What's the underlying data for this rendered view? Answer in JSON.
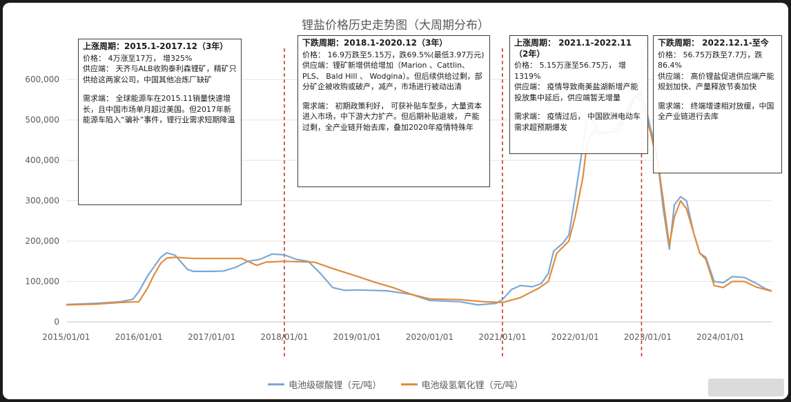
{
  "chart_data": {
    "type": "line",
    "title": "锂盐价格历史走势图（大周期分布）",
    "xlabel": "",
    "ylabel": "",
    "ylim": [
      0,
      650000
    ],
    "xlim": [
      "2015/01/01",
      "2024/09/15"
    ],
    "yticks": [
      0,
      100000,
      200000,
      300000,
      400000,
      500000,
      600000
    ],
    "ytick_labels": [
      "0",
      "100,000",
      "200,000",
      "300,000",
      "400,000",
      "500,000",
      "600,000"
    ],
    "xticks": [
      "2015/01/01",
      "2016/01/01",
      "2017/01/01",
      "2018/01/01",
      "2019/01/01",
      "2020/01/01",
      "2021/01/01",
      "2022/01/01",
      "2023/01/01",
      "2024/01/01"
    ],
    "grid": true,
    "legend_position": "bottom",
    "cycle_dividers": [
      "2018/01/01",
      "2021/01/01",
      "2022/12/01"
    ],
    "series": [
      {
        "name": "电池级碳酸锂（元/吨）",
        "color": "#7ba7d4",
        "points": [
          [
            "2015/01/01",
            43000
          ],
          [
            "2015/06/01",
            46000
          ],
          [
            "2015/10/01",
            50000
          ],
          [
            "2015/12/01",
            56000
          ],
          [
            "2016/01/01",
            75000
          ],
          [
            "2016/02/15",
            115000
          ],
          [
            "2016/03/15",
            135000
          ],
          [
            "2016/04/20",
            160000
          ],
          [
            "2016/05/20",
            171000
          ],
          [
            "2016/07/01",
            165000
          ],
          [
            "2016/09/01",
            130000
          ],
          [
            "2016/10/01",
            125000
          ],
          [
            "2017/01/01",
            125000
          ],
          [
            "2017/03/01",
            126000
          ],
          [
            "2017/05/01",
            135000
          ],
          [
            "2017/07/01",
            150000
          ],
          [
            "2017/09/01",
            155000
          ],
          [
            "2017/11/01",
            168000
          ],
          [
            "2018/01/01",
            166000
          ],
          [
            "2018/03/01",
            155000
          ],
          [
            "2018/05/01",
            150000
          ],
          [
            "2018/07/01",
            120000
          ],
          [
            "2018/09/01",
            85000
          ],
          [
            "2018/11/01",
            78000
          ],
          [
            "2019/01/01",
            79000
          ],
          [
            "2019/06/01",
            77000
          ],
          [
            "2019/10/01",
            68000
          ],
          [
            "2020/01/01",
            53000
          ],
          [
            "2020/06/01",
            50000
          ],
          [
            "2020/09/01",
            42000
          ],
          [
            "2020/12/01",
            46000
          ],
          [
            "2021/01/01",
            55000
          ],
          [
            "2021/02/15",
            80000
          ],
          [
            "2021/04/01",
            90000
          ],
          [
            "2021/06/01",
            87000
          ],
          [
            "2021/07/15",
            95000
          ],
          [
            "2021/08/20",
            120000
          ],
          [
            "2021/09/15",
            175000
          ],
          [
            "2021/11/01",
            195000
          ],
          [
            "2021/12/01",
            215000
          ],
          [
            "2022/01/01",
            310000
          ],
          [
            "2022/02/10",
            440000
          ],
          [
            "2022/03/01",
            500000
          ],
          [
            "2022/04/01",
            500000
          ],
          [
            "2022/05/01",
            465000
          ],
          [
            "2022/07/01",
            470000
          ],
          [
            "2022/09/01",
            500000
          ],
          [
            "2022/10/15",
            550000
          ],
          [
            "2022/11/20",
            567500
          ],
          [
            "2022/12/15",
            545000
          ],
          [
            "2023/01/15",
            480000
          ],
          [
            "2023/02/15",
            420000
          ],
          [
            "2023/03/20",
            280000
          ],
          [
            "2023/04/20",
            180000
          ],
          [
            "2023/05/15",
            290000
          ],
          [
            "2023/06/15",
            310000
          ],
          [
            "2023/07/15",
            300000
          ],
          [
            "2023/08/20",
            220000
          ],
          [
            "2023/09/20",
            170000
          ],
          [
            "2023/10/20",
            160000
          ],
          [
            "2023/12/01",
            100000
          ],
          [
            "2024/01/15",
            97000
          ],
          [
            "2024/03/01",
            112000
          ],
          [
            "2024/05/01",
            110000
          ],
          [
            "2024/07/01",
            95000
          ],
          [
            "2024/08/15",
            82000
          ],
          [
            "2024/09/15",
            77000
          ]
        ]
      },
      {
        "name": "电池级氢氧化锂（元/吨）",
        "color": "#e28b39",
        "points": [
          [
            "2015/01/01",
            42000
          ],
          [
            "2015/06/01",
            44000
          ],
          [
            "2015/10/01",
            48000
          ],
          [
            "2016/01/01",
            50000
          ],
          [
            "2016/02/15",
            85000
          ],
          [
            "2016/03/15",
            115000
          ],
          [
            "2016/04/20",
            145000
          ],
          [
            "2016/05/20",
            158000
          ],
          [
            "2016/07/01",
            160000
          ],
          [
            "2016/10/01",
            157000
          ],
          [
            "2017/01/01",
            157000
          ],
          [
            "2017/06/01",
            157000
          ],
          [
            "2017/08/15",
            140000
          ],
          [
            "2017/10/01",
            148000
          ],
          [
            "2018/01/01",
            150000
          ],
          [
            "2018/06/01",
            148000
          ],
          [
            "2018/09/01",
            132000
          ],
          [
            "2019/01/01",
            113000
          ],
          [
            "2019/04/01",
            98000
          ],
          [
            "2019/07/01",
            85000
          ],
          [
            "2019/10/01",
            68000
          ],
          [
            "2020/01/01",
            57000
          ],
          [
            "2020/06/01",
            55000
          ],
          [
            "2020/10/01",
            50000
          ],
          [
            "2021/01/01",
            48000
          ],
          [
            "2021/04/01",
            60000
          ],
          [
            "2021/07/01",
            83000
          ],
          [
            "2021/08/20",
            100000
          ],
          [
            "2021/10/01",
            170000
          ],
          [
            "2021/12/01",
            200000
          ],
          [
            "2022/01/01",
            260000
          ],
          [
            "2022/02/10",
            360000
          ],
          [
            "2022/03/01",
            440000
          ],
          [
            "2022/04/01",
            470000
          ],
          [
            "2022/05/01",
            470000
          ],
          [
            "2022/08/01",
            470000
          ],
          [
            "2022/10/01",
            520000
          ],
          [
            "2022/11/01",
            560000
          ],
          [
            "2022/12/01",
            545000
          ],
          [
            "2023/01/15",
            470000
          ],
          [
            "2023/03/01",
            370000
          ],
          [
            "2023/04/20",
            190000
          ],
          [
            "2023/05/15",
            260000
          ],
          [
            "2023/06/15",
            300000
          ],
          [
            "2023/07/15",
            280000
          ],
          [
            "2023/08/20",
            220000
          ],
          [
            "2023/09/20",
            170000
          ],
          [
            "2023/10/20",
            155000
          ],
          [
            "2023/12/01",
            90000
          ],
          [
            "2024/01/15",
            85000
          ],
          [
            "2024/03/01",
            100000
          ],
          [
            "2024/05/01",
            100000
          ],
          [
            "2024/07/01",
            86000
          ],
          [
            "2024/09/15",
            76000
          ]
        ]
      }
    ]
  },
  "annotations": [
    {
      "head": "上涨周期：2015.1-2017.12（3年）",
      "blocks": [
        [
          "价格：  4万涨至17万，  增325%",
          "供应端：  天齐与ALB收购泰利森锂矿，精矿只供给这两家公司，中国其他冶炼厂缺矿"
        ],
        [
          "需求端：  全球能源车在2015.11销量快速增长，且中国市场单月超过美国。但2017年新能源车陷入“骗补”事件，锂行业需求短期降温"
        ]
      ]
    },
    {
      "head": "下跌周期：2018.1-2020.12（3年）",
      "blocks": [
        [
          "价格：  16.9万跌至5.15万，跌69.5%(最低3.97万元)",
          "供应端：锂矿新增供给增加（Marion 、Cattlin、 PLS、 Bald Hill 、 Wodgina）。但后续供给过剩，部分矿企被收购或破产，减产，市场进行被动出清"
        ],
        [
          "需求端：  初期政策利好，  可获补贴车型多，大量资本进入市场，中下游大力扩产。但后期补贴退坡，  产能过剩，全产业链开始去库，叠加2020年疫情特殊年"
        ]
      ]
    },
    {
      "head": "上涨周期：  2021.1-2022.11（2年）",
      "blocks": [
        [
          "价格：  5.15万涨至56.75万，  增1319%",
          "供应端：  疫情导致南美盐湖新增产能投放集中延后，供应端暂无增量"
        ],
        [
          "需求端：  疫情过后，  中国欧洲电动车需求超预期爆发"
        ]
      ]
    },
    {
      "head": "下跌周期：  2022.12.1-至今",
      "blocks": [
        [
          "价格：  56.75万跌至7.7万，跌86.4%",
          "供应端：  高价锂盐促进供应端产能规划加快、产量释放节奏加快"
        ],
        [
          "需求端：  终端增速相对放缓，中国全产业链进行去库"
        ]
      ]
    }
  ]
}
